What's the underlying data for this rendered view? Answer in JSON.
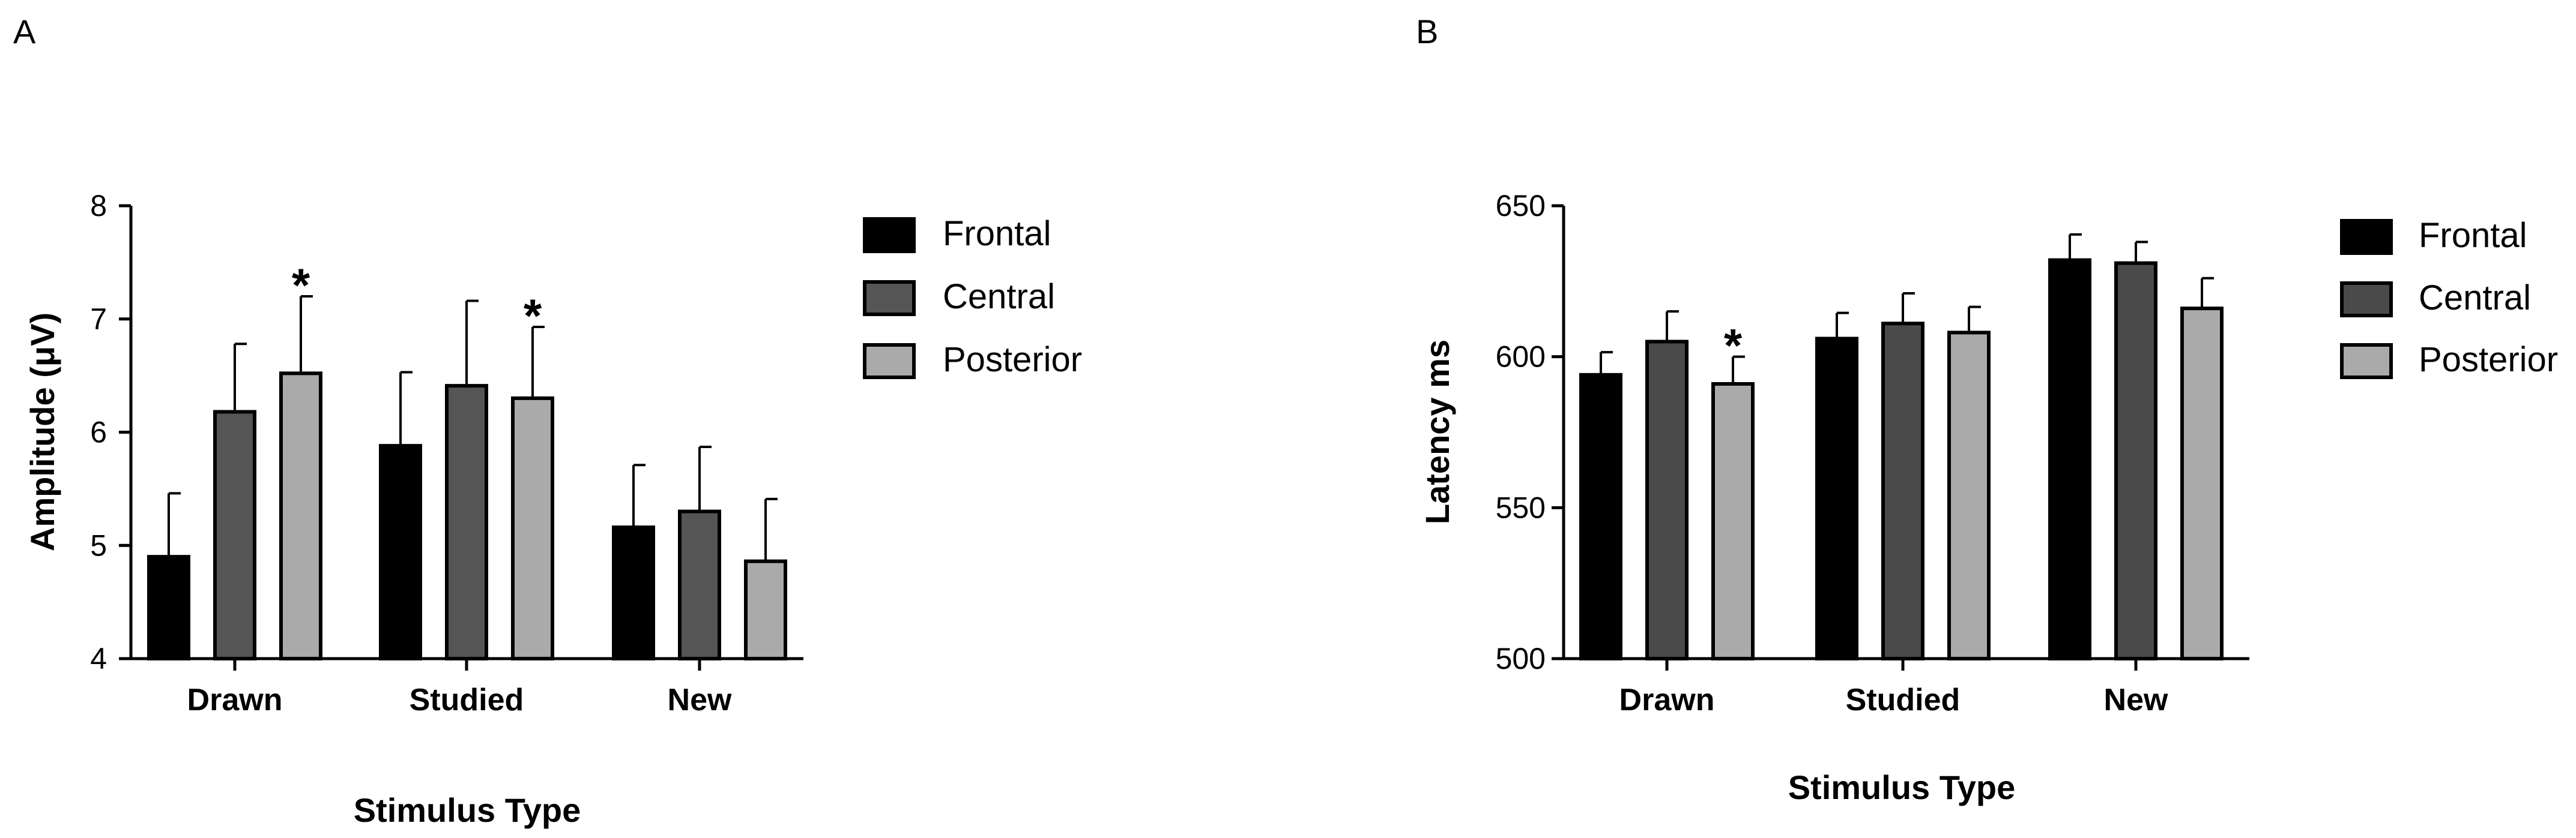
{
  "chart_data": [
    {
      "panel_label": "A",
      "type": "bar",
      "title": "",
      "xlabel": "Stimulus Type",
      "ylabel": "Amplitude (μV)",
      "ylim": [
        4,
        8
      ],
      "yticks": [
        4,
        5,
        6,
        7,
        8
      ],
      "categories": [
        "Drawn",
        "Studied",
        "New"
      ],
      "series": [
        {
          "name": "Frontal",
          "color": "#000000",
          "values": [
            4.9,
            5.88,
            5.16
          ],
          "errors": [
            0.56,
            0.65,
            0.55
          ]
        },
        {
          "name": "Central",
          "color": "#555555",
          "values": [
            6.18,
            6.41,
            5.3
          ],
          "errors": [
            0.6,
            0.75,
            0.57
          ]
        },
        {
          "name": "Posterior",
          "color": "#aaaaaa",
          "values": [
            6.52,
            6.3,
            4.86
          ],
          "errors": [
            0.68,
            0.63,
            0.55
          ]
        }
      ],
      "annotations": [
        {
          "text": "*",
          "category": "Drawn",
          "series": "Posterior"
        },
        {
          "text": "*",
          "category": "Studied",
          "series": "Posterior"
        }
      ],
      "legend": "right"
    },
    {
      "panel_label": "B",
      "type": "bar",
      "title": "",
      "xlabel": "Stimulus Type",
      "ylabel": "Latency ms",
      "ylim": [
        500,
        650
      ],
      "yticks": [
        500,
        550,
        600,
        650
      ],
      "categories": [
        "Drawn",
        "Studied",
        "New"
      ],
      "series": [
        {
          "name": "Frontal",
          "color": "#000000",
          "values": [
            594,
            606,
            632
          ],
          "errors": [
            7.5,
            8.5,
            8.5
          ]
        },
        {
          "name": "Central",
          "color": "#4a4a4a",
          "values": [
            605,
            611,
            631
          ],
          "errors": [
            10,
            10,
            7
          ]
        },
        {
          "name": "Posterior",
          "color": "#aaaaaa",
          "values": [
            591,
            608,
            616
          ],
          "errors": [
            9,
            8.5,
            10
          ]
        }
      ],
      "annotations": [
        {
          "text": "*",
          "category": "Drawn",
          "series": "Posterior"
        }
      ],
      "legend": "right"
    }
  ]
}
